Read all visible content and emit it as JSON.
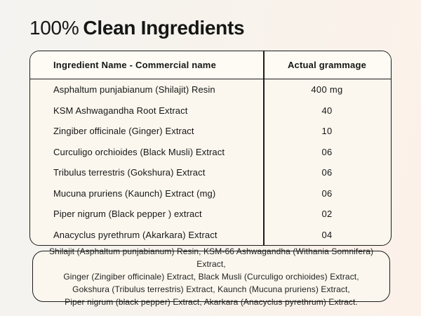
{
  "page": {
    "title_light": "100%",
    "title_bold": "Clean Ingredients"
  },
  "table": {
    "headers": {
      "ingredient": "Ingredient Name - Commercial name",
      "grammage": "Actual grammage"
    },
    "rows": [
      {
        "name": "Asphaltum punjabianum (Shilajit) Resin",
        "value": "400 mg"
      },
      {
        "name": "KSM Ashwagandha Root Extract",
        "value": "40"
      },
      {
        "name": "Zingiber officinale (Ginger) Extract",
        "value": "10"
      },
      {
        "name": "Curculigo orchioides (Black Musli) Extract",
        "value": "06"
      },
      {
        "name": "Tribulus terrestris (Gokshura) Extract",
        "value": "06"
      },
      {
        "name": "Mucuna pruriens (Kaunch) Extract (mg)",
        "value": "06"
      },
      {
        "name": "Piper nigrum (Black pepper ) extract",
        "value": "02"
      },
      {
        "name": "Anacyclus pyrethrum (Akarkara) Extract",
        "value": "04"
      }
    ]
  },
  "footer": {
    "lines": [
      "Shilajit (Asphaltum punjabianum) Resin, KSM-66 Ashwagandha  (Withania Somnifera) Extract,",
      "Ginger (Zingiber officinale) Extract, Black Musli (Curculigo orchioides) Extract,",
      "Gokshura  (Tribulus terrestris) Extract, Kaunch (Mucuna pruriens) Extract,",
      "Piper nigrum (black pepper) Extract, Akarkara (Anacyclus pyrethrum) Extract."
    ]
  },
  "colors": {
    "border": "#1c1c1c",
    "text": "#161616",
    "table_bg": "#fbf7ee",
    "page_bg_left": "#f4f3f1",
    "page_bg_right": "#fcf1e9"
  }
}
